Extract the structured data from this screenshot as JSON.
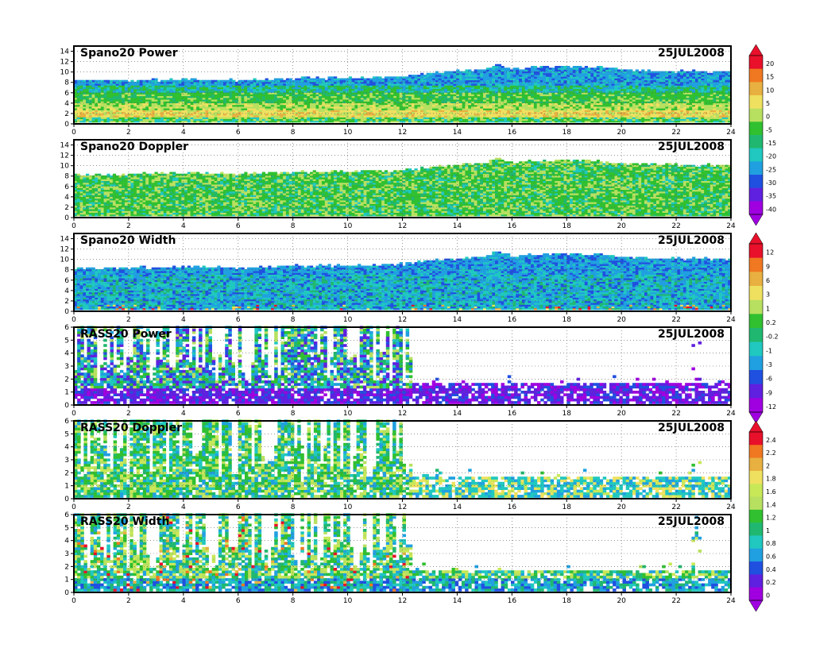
{
  "figure": {
    "date_label": "25JUL2008"
  },
  "chart_data": [
    {
      "type": "heatmap",
      "title": "Spano20 Power",
      "date": "25JUL2008",
      "x_ticks": [
        "0",
        "2",
        "4",
        "6",
        "8",
        "10",
        "12",
        "14",
        "16",
        "18",
        "20",
        "22",
        "24"
      ],
      "y_ticks": [
        "0",
        "2",
        "4",
        "6",
        "8",
        "10",
        "12",
        "14"
      ],
      "xlim": [
        0,
        24
      ],
      "ylim": [
        0,
        15
      ],
      "grid": true,
      "colorbar": "power",
      "pattern": "layered",
      "top_profile": [
        [
          0,
          8.2
        ],
        [
          2,
          8.2
        ],
        [
          4,
          8.5
        ],
        [
          6,
          8.2
        ],
        [
          8,
          8.6
        ],
        [
          10,
          8.7
        ],
        [
          12,
          9.0
        ],
        [
          13,
          9.6
        ],
        [
          14,
          10.0
        ],
        [
          15,
          10.3
        ],
        [
          15.5,
          11.5
        ],
        [
          16,
          10.4
        ],
        [
          17,
          10.8
        ],
        [
          18,
          11.0
        ],
        [
          19,
          10.8
        ],
        [
          20,
          10.3
        ],
        [
          22,
          10.0
        ],
        [
          24,
          10.0
        ]
      ]
    },
    {
      "type": "heatmap",
      "title": "Spano20 Doppler",
      "date": "25JUL2008",
      "x_ticks": [
        "0",
        "2",
        "4",
        "6",
        "8",
        "10",
        "12",
        "14",
        "16",
        "18",
        "20",
        "22",
        "24"
      ],
      "y_ticks": [
        "0",
        "2",
        "4",
        "6",
        "8",
        "10",
        "12",
        "14"
      ],
      "xlim": [
        0,
        24
      ],
      "ylim": [
        0,
        15
      ],
      "grid": true,
      "colorbar": "power",
      "pattern": "greens",
      "top_profile": [
        [
          0,
          8.2
        ],
        [
          2,
          8.2
        ],
        [
          4,
          8.5
        ],
        [
          6,
          8.2
        ],
        [
          8,
          8.6
        ],
        [
          10,
          8.7
        ],
        [
          12,
          9.0
        ],
        [
          13,
          9.6
        ],
        [
          14,
          10.0
        ],
        [
          15,
          10.3
        ],
        [
          15.5,
          11.5
        ],
        [
          16,
          10.4
        ],
        [
          17,
          10.8
        ],
        [
          18,
          11.0
        ],
        [
          19,
          10.8
        ],
        [
          20,
          10.3
        ],
        [
          22,
          10.0
        ],
        [
          24,
          10.0
        ]
      ]
    },
    {
      "type": "heatmap",
      "title": "Spano20 Width",
      "date": "25JUL2008",
      "x_ticks": [
        "0",
        "2",
        "4",
        "6",
        "8",
        "10",
        "12",
        "14",
        "16",
        "18",
        "20",
        "22",
        "24"
      ],
      "y_ticks": [
        "0",
        "2",
        "4",
        "6",
        "8",
        "10",
        "12",
        "14"
      ],
      "xlim": [
        0,
        24
      ],
      "ylim": [
        0,
        15
      ],
      "grid": true,
      "colorbar": "width",
      "pattern": "width",
      "top_profile": [
        [
          0,
          8.2
        ],
        [
          2,
          8.2
        ],
        [
          4,
          8.5
        ],
        [
          6,
          8.2
        ],
        [
          8,
          8.6
        ],
        [
          10,
          8.7
        ],
        [
          12,
          9.0
        ],
        [
          13,
          9.6
        ],
        [
          14,
          10.0
        ],
        [
          15,
          10.3
        ],
        [
          15.5,
          11.5
        ],
        [
          16,
          10.4
        ],
        [
          17,
          10.8
        ],
        [
          18,
          11.0
        ],
        [
          19,
          10.8
        ],
        [
          20,
          10.3
        ],
        [
          22,
          10.0
        ],
        [
          24,
          10.0
        ]
      ]
    },
    {
      "type": "heatmap",
      "title": "RASS20 Power",
      "date": "25JUL2008",
      "x_ticks": [
        "0",
        "2",
        "4",
        "6",
        "8",
        "10",
        "12",
        "14",
        "16",
        "18",
        "20",
        "22",
        "24"
      ],
      "y_ticks": [
        "0",
        "1",
        "2",
        "3",
        "4",
        "5",
        "6"
      ],
      "xlim": [
        0,
        24
      ],
      "ylim": [
        0,
        6
      ],
      "grid": true,
      "colorbar": "rass_power",
      "pattern": "rass_power"
    },
    {
      "type": "heatmap",
      "title": "RASS20 Doppler",
      "date": "25JUL2008",
      "x_ticks": [
        "0",
        "2",
        "4",
        "6",
        "8",
        "10",
        "12",
        "14",
        "16",
        "18",
        "20",
        "22",
        "24"
      ],
      "y_ticks": [
        "0",
        "1",
        "2",
        "3",
        "4",
        "5",
        "6"
      ],
      "xlim": [
        0,
        24
      ],
      "ylim": [
        0,
        6
      ],
      "grid": true,
      "colorbar": "rass_doppler",
      "pattern": "rass_doppler"
    },
    {
      "type": "heatmap",
      "title": "RASS20 Width",
      "date": "25JUL2008",
      "x_ticks": [
        "0",
        "2",
        "4",
        "6",
        "8",
        "10",
        "12",
        "14",
        "16",
        "18",
        "20",
        "22",
        "24"
      ],
      "y_ticks": [
        "0",
        "1",
        "2",
        "3",
        "4",
        "5",
        "6"
      ],
      "xlim": [
        0,
        24
      ],
      "ylim": [
        0,
        6
      ],
      "grid": true,
      "colorbar": "rass_doppler",
      "pattern": "rass_width"
    }
  ],
  "colorbars": {
    "power": {
      "labels": [
        "20",
        "15",
        "10",
        "5",
        "0",
        "-5",
        "-15",
        "-20",
        "-25",
        "-30",
        "-35",
        "-40"
      ],
      "colors": [
        "#e8102a",
        "#f07820",
        "#e8b040",
        "#f0e060",
        "#b8e060",
        "#30c030",
        "#20b870",
        "#20c8c0",
        "#20a0e0",
        "#2050e0",
        "#6020e0",
        "#a000e0"
      ]
    },
    "width": {
      "labels": [
        "12",
        "9",
        "6",
        "3",
        "1",
        "0.2",
        "-0.2",
        "-1",
        "-3",
        "-6",
        "-9",
        "-12"
      ],
      "colors": [
        "#e8102a",
        "#f07820",
        "#e8b040",
        "#f0e060",
        "#b8e060",
        "#30c030",
        "#20b870",
        "#20c8c0",
        "#20a0e0",
        "#2050e0",
        "#6020e0",
        "#a000e0"
      ]
    },
    "rass_power": {
      "labels": [
        "12",
        "9",
        "6",
        "3",
        "1",
        "0.2",
        "-0.2",
        "-1",
        "-3",
        "-6",
        "-9",
        "-12"
      ],
      "colors": [
        "#e8102a",
        "#f07820",
        "#e8b040",
        "#f0e060",
        "#b8e060",
        "#30c030",
        "#20b870",
        "#20c8c0",
        "#20a0e0",
        "#2050e0",
        "#6020e0",
        "#a000e0"
      ]
    },
    "rass_doppler": {
      "labels": [
        "2.4",
        "2.2",
        "2",
        "1.8",
        "1.6",
        "1.4",
        "1.2",
        "1",
        "0.8",
        "0.6",
        "0.4",
        "0.2",
        "0"
      ],
      "colors": [
        "#e8102a",
        "#f07820",
        "#e8b040",
        "#f0e060",
        "#c8e858",
        "#b8e060",
        "#30c030",
        "#20b870",
        "#20c8c0",
        "#20a0e0",
        "#2050e0",
        "#6020e0",
        "#a000e0"
      ]
    }
  }
}
